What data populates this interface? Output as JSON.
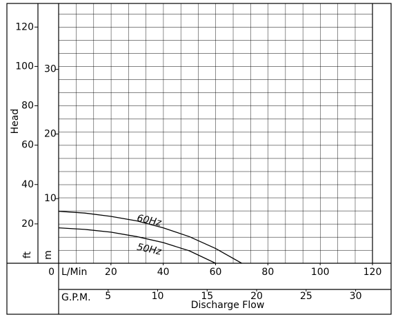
{
  "chart_data": {
    "type": "line",
    "y_label": "Head",
    "y_unit": "ft",
    "y2_unit": "m",
    "x_unit": "L/Min",
    "x2_unit": "G.P.M.",
    "x_label": "Discharge Flow",
    "xlim": [
      0,
      120
    ],
    "xticks": [
      0,
      20,
      40,
      60,
      80,
      100,
      120
    ],
    "x2lim": [
      0,
      31.7
    ],
    "x2ticks": [
      5,
      10,
      15,
      20,
      25,
      30
    ],
    "ylim": [
      0,
      132
    ],
    "yticks": [
      20,
      40,
      60,
      80,
      100,
      120
    ],
    "y2lim": [
      0,
      40.2
    ],
    "y2ticks": [
      10,
      20,
      30
    ],
    "grid": true,
    "series": [
      {
        "name": "60Hz",
        "color": "#000000",
        "x": [
          0,
          10,
          20,
          30,
          40,
          50,
          60,
          70
        ],
        "values": [
          26.4,
          25.5,
          23.8,
          21.5,
          18,
          13.5,
          7.5,
          0
        ]
      },
      {
        "name": "50Hz",
        "color": "#000000",
        "x": [
          0,
          10,
          20,
          30,
          40,
          50,
          60
        ],
        "values": [
          18,
          17.2,
          15.8,
          13.5,
          10.5,
          6.3,
          0
        ]
      }
    ]
  }
}
